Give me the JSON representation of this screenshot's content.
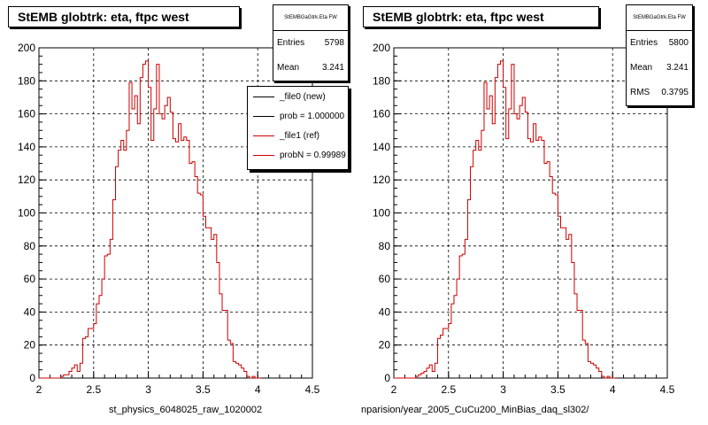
{
  "chart_data": [
    {
      "type": "bar",
      "title": "StEMB globtrk: eta, ftpc west",
      "xlabel": "st_physics_6048025_raw_1020002",
      "ylabel": "",
      "xlim": [
        2,
        4.5
      ],
      "ylim": [
        0,
        200
      ],
      "x_ticks": [
        "2",
        "2.5",
        "3",
        "3.5",
        "4",
        "4.5"
      ],
      "y_ticks": [
        "0",
        "20",
        "40",
        "60",
        "80",
        "100",
        "120",
        "140",
        "160",
        "180",
        "200"
      ],
      "grid": true,
      "bin_width": 0.025,
      "series": [
        {
          "color": "#cc0000",
          "values": [
            0,
            0,
            0,
            0,
            0,
            0,
            0,
            0,
            1,
            2,
            2,
            4,
            6,
            8,
            4,
            9,
            24,
            25,
            30,
            30,
            33,
            45,
            50,
            60,
            74,
            75,
            84,
            108,
            128,
            138,
            144,
            138,
            150,
            179,
            163,
            171,
            154,
            182,
            190,
            192,
            176,
            144,
            163,
            190,
            160,
            157,
            165,
            170,
            161,
            145,
            143,
            154,
            144,
            146,
            144,
            130,
            131,
            122,
            112,
            111,
            98,
            91,
            91,
            84,
            87,
            70,
            51,
            41,
            41,
            23,
            21,
            10,
            9,
            8,
            6,
            4,
            1,
            0,
            1,
            0,
            0
          ]
        }
      ],
      "stats": {
        "header": "StEMBGaGtrk.Eta FW",
        "entries_label": "Entries",
        "entries": "5798",
        "mean_label": "Mean",
        "mean": "3.241"
      },
      "legend": [
        {
          "label": "_file0 (new)",
          "color": "#000000"
        },
        {
          "label": "prob = 1.000000",
          "color": "#000000"
        },
        {
          "label": "_file1 (ref)",
          "color": "#cc0000"
        },
        {
          "label": "probN = 0.99989",
          "color": "#cc0000"
        }
      ]
    },
    {
      "type": "bar",
      "title": "StEMB globtrk: eta, ftpc west",
      "xlabel": "nparision/year_2005_CuCu200_MinBias_daq_sl302/",
      "ylabel": "",
      "xlim": [
        2,
        4.5
      ],
      "ylim": [
        0,
        200
      ],
      "x_ticks": [
        "2",
        "2.5",
        "3",
        "3.5",
        "4",
        "4.5"
      ],
      "y_ticks": [
        "0",
        "20",
        "40",
        "60",
        "80",
        "100",
        "120",
        "140",
        "160",
        "180",
        "200"
      ],
      "grid": true,
      "bin_width": 0.025,
      "series": [
        {
          "color": "#cc0000",
          "values": [
            0,
            0,
            0,
            0,
            0,
            0,
            0,
            0,
            1,
            2,
            3,
            4,
            6,
            8,
            4,
            9,
            24,
            26,
            30,
            30,
            33,
            45,
            50,
            60,
            74,
            75,
            84,
            108,
            128,
            138,
            144,
            138,
            150,
            179,
            163,
            171,
            154,
            182,
            190,
            192,
            176,
            145,
            163,
            190,
            160,
            157,
            165,
            170,
            161,
            145,
            143,
            154,
            144,
            146,
            144,
            130,
            131,
            122,
            112,
            111,
            98,
            91,
            91,
            84,
            87,
            70,
            51,
            41,
            41,
            23,
            21,
            10,
            9,
            8,
            6,
            4,
            1,
            0,
            1,
            0,
            0
          ]
        }
      ],
      "stats": {
        "header": "StEMBGaGtrk.Eta FW",
        "entries_label": "Entries",
        "entries": "5800",
        "mean_label": "Mean",
        "mean": "3.241",
        "rms_label": "RMS",
        "rms": "0.3795"
      }
    }
  ]
}
